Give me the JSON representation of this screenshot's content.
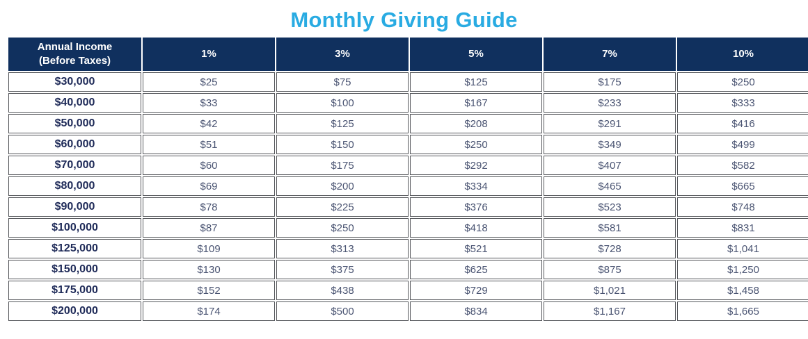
{
  "page": {
    "title": "Monthly Giving Guide"
  },
  "colors": {
    "title": "#29abe2",
    "header_bg": "#10305e",
    "header_text": "#ffffff",
    "income_text": "#1e2a58",
    "cell_text": "#4a5472",
    "cell_border": "#54565a"
  },
  "table": {
    "header_income": "Annual Income\n(Before Taxes)",
    "percent_headers": [
      "1%",
      "3%",
      "5%",
      "7%",
      "10%"
    ],
    "rows": [
      {
        "income": "$30,000",
        "values": [
          "$25",
          "$75",
          "$125",
          "$175",
          "$250"
        ]
      },
      {
        "income": "$40,000",
        "values": [
          "$33",
          "$100",
          "$167",
          "$233",
          "$333"
        ]
      },
      {
        "income": "$50,000",
        "values": [
          "$42",
          "$125",
          "$208",
          "$291",
          "$416"
        ]
      },
      {
        "income": "$60,000",
        "values": [
          "$51",
          "$150",
          "$250",
          "$349",
          "$499"
        ]
      },
      {
        "income": "$70,000",
        "values": [
          "$60",
          "$175",
          "$292",
          "$407",
          "$582"
        ]
      },
      {
        "income": "$80,000",
        "values": [
          "$69",
          "$200",
          "$334",
          "$465",
          "$665"
        ]
      },
      {
        "income": "$90,000",
        "values": [
          "$78",
          "$225",
          "$376",
          "$523",
          "$748"
        ]
      },
      {
        "income": "$100,000",
        "values": [
          "$87",
          "$250",
          "$418",
          "$581",
          "$831"
        ]
      },
      {
        "income": "$125,000",
        "values": [
          "$109",
          "$313",
          "$521",
          "$728",
          "$1,041"
        ]
      },
      {
        "income": "$150,000",
        "values": [
          "$130",
          "$375",
          "$625",
          "$875",
          "$1,250"
        ]
      },
      {
        "income": "$175,000",
        "values": [
          "$152",
          "$438",
          "$729",
          "$1,021",
          "$1,458"
        ]
      },
      {
        "income": "$200,000",
        "values": [
          "$174",
          "$500",
          "$834",
          "$1,167",
          "$1,665"
        ]
      }
    ]
  },
  "chart_data": {
    "type": "table",
    "title": "Monthly Giving Guide",
    "columns": [
      "Annual Income (Before Taxes)",
      "1%",
      "3%",
      "5%",
      "7%",
      "10%"
    ],
    "rows": [
      [
        "$30,000",
        "$25",
        "$75",
        "$125",
        "$175",
        "$250"
      ],
      [
        "$40,000",
        "$33",
        "$100",
        "$167",
        "$233",
        "$333"
      ],
      [
        "$50,000",
        "$42",
        "$125",
        "$208",
        "$291",
        "$416"
      ],
      [
        "$60,000",
        "$51",
        "$150",
        "$250",
        "$349",
        "$499"
      ],
      [
        "$70,000",
        "$60",
        "$175",
        "$292",
        "$407",
        "$582"
      ],
      [
        "$80,000",
        "$69",
        "$200",
        "$334",
        "$465",
        "$665"
      ],
      [
        "$90,000",
        "$78",
        "$225",
        "$376",
        "$523",
        "$748"
      ],
      [
        "$100,000",
        "$87",
        "$250",
        "$418",
        "$581",
        "$831"
      ],
      [
        "$125,000",
        "$109",
        "$313",
        "$521",
        "$728",
        "$1,041"
      ],
      [
        "$150,000",
        "$130",
        "$375",
        "$625",
        "$875",
        "$1,250"
      ],
      [
        "$175,000",
        "$152",
        "$438",
        "$729",
        "$1,021",
        "$1,458"
      ],
      [
        "$200,000",
        "$174",
        "$500",
        "$834",
        "$1,167",
        "$1,665"
      ]
    ]
  }
}
